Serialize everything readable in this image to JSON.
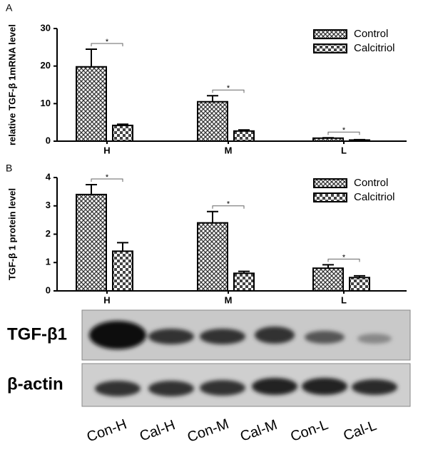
{
  "chart_data": [
    {
      "type": "bar",
      "label": "A",
      "y_label": "relative TGF-β 1mRNA level",
      "categories": [
        "H",
        "M",
        "L"
      ],
      "series": [
        {
          "name": "Control",
          "color": "#000000",
          "values": [
            19.8,
            10.5,
            0.8
          ],
          "errors": [
            4.7,
            1.6,
            0.1
          ]
        },
        {
          "name": "Calcitriol",
          "color": "#000000",
          "values": [
            4.2,
            2.7,
            0.3
          ],
          "errors": [
            0.3,
            0.3,
            0.1
          ]
        }
      ],
      "annotations": [
        "*",
        "*",
        "*"
      ],
      "ylim": [
        0,
        30
      ],
      "yticks": [
        0,
        10,
        20,
        30
      ],
      "legend": "upper right"
    },
    {
      "type": "bar",
      "label": "B",
      "y_label": "TGF-β 1 protein level",
      "categories": [
        "H",
        "M",
        "L"
      ],
      "series": [
        {
          "name": "Control",
          "color": "#000000",
          "values": [
            3.4,
            2.4,
            0.8
          ],
          "errors": [
            0.35,
            0.4,
            0.12
          ]
        },
        {
          "name": "Calcitriol",
          "color": "#000000",
          "values": [
            1.4,
            0.62,
            0.47
          ],
          "errors": [
            0.3,
            0.07,
            0.06
          ]
        }
      ],
      "annotations": [
        "*",
        "*",
        "*"
      ],
      "ylim": [
        0,
        4
      ],
      "yticks": [
        0,
        1,
        2,
        3,
        4
      ],
      "legend": "upper right"
    }
  ],
  "blot": {
    "rows": [
      "TGF-β1",
      "β-actin"
    ],
    "lanes": [
      "Con-H",
      "Cal-H",
      "Con-M",
      "Cal-M",
      "Con-L",
      "Cal-L"
    ]
  }
}
